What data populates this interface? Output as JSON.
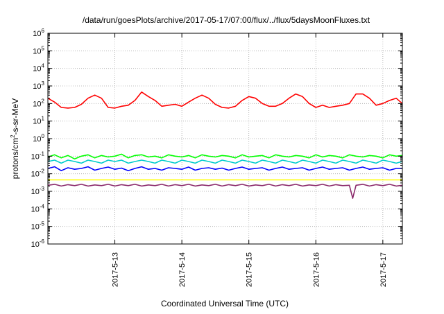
{
  "chart_data": {
    "type": "line",
    "title": "/data/run/goesPlots/archive/2017-05-17/07:00/flux/../flux/5daysMoonFluxes.txt",
    "xlabel": "Coordinated Universal Time (UTC)",
    "ylabel_prefix": "protons/cm",
    "ylabel_sup": "2",
    "ylabel_suffix": "-s-sr-MeV",
    "y_scale": "log",
    "ylim": [
      1e-06,
      1000000.0
    ],
    "y_tick_exponents": [
      "-6",
      "-5",
      "-4",
      "-3",
      "-2",
      "-1",
      "0",
      "1",
      "2",
      "3",
      "4",
      "5",
      "6"
    ],
    "xlim": [
      "2017-05-12 00:00",
      "2017-05-17 07:00"
    ],
    "x_ticks": [
      "2017-5-13",
      "2017-5-14",
      "2017-5-15",
      "2017-5-16",
      "2017-5-17"
    ],
    "grid": true,
    "series": [
      {
        "color": "#ff0000",
        "x_days": [
          0.0,
          0.1,
          0.2,
          0.3,
          0.4,
          0.5,
          0.6,
          0.7,
          0.8,
          0.9,
          1.0,
          1.1,
          1.2,
          1.3,
          1.4,
          1.5,
          1.6,
          1.7,
          1.8,
          1.9,
          2.0,
          2.1,
          2.2,
          2.3,
          2.4,
          2.5,
          2.6,
          2.7,
          2.8,
          2.9,
          3.0,
          3.1,
          3.2,
          3.3,
          3.4,
          3.5,
          3.6,
          3.7,
          3.8,
          3.9,
          4.0,
          4.1,
          4.2,
          4.3,
          4.4,
          4.5,
          4.6,
          4.7,
          4.8,
          4.9,
          5.0,
          5.1,
          5.2,
          5.29
        ],
        "values": [
          200,
          120,
          60,
          55,
          60,
          90,
          200,
          300,
          200,
          60,
          55,
          70,
          80,
          150,
          450,
          250,
          150,
          70,
          80,
          90,
          70,
          120,
          200,
          300,
          200,
          90,
          60,
          55,
          70,
          150,
          250,
          200,
          100,
          70,
          70,
          100,
          200,
          350,
          250,
          100,
          60,
          80,
          60,
          70,
          80,
          100,
          350,
          350,
          200,
          80,
          100,
          150,
          200,
          100
        ]
      },
      {
        "color": "#00ff00",
        "x_days": [
          0.0,
          0.1,
          0.2,
          0.3,
          0.4,
          0.5,
          0.6,
          0.7,
          0.8,
          0.9,
          1.0,
          1.1,
          1.2,
          1.3,
          1.4,
          1.5,
          1.6,
          1.7,
          1.8,
          1.9,
          2.0,
          2.1,
          2.2,
          2.3,
          2.4,
          2.5,
          2.6,
          2.7,
          2.8,
          2.9,
          3.0,
          3.1,
          3.2,
          3.3,
          3.4,
          3.5,
          3.6,
          3.7,
          3.8,
          3.9,
          4.0,
          4.1,
          4.2,
          4.3,
          4.4,
          4.5,
          4.6,
          4.7,
          4.8,
          4.9,
          5.0,
          5.1,
          5.2,
          5.29
        ],
        "values": [
          0.09,
          0.12,
          0.08,
          0.11,
          0.07,
          0.1,
          0.12,
          0.08,
          0.11,
          0.09,
          0.1,
          0.13,
          0.08,
          0.11,
          0.12,
          0.09,
          0.1,
          0.08,
          0.12,
          0.1,
          0.09,
          0.11,
          0.08,
          0.12,
          0.1,
          0.09,
          0.11,
          0.1,
          0.08,
          0.12,
          0.09,
          0.1,
          0.11,
          0.08,
          0.12,
          0.1,
          0.09,
          0.11,
          0.1,
          0.08,
          0.12,
          0.09,
          0.11,
          0.1,
          0.08,
          0.12,
          0.1,
          0.09,
          0.11,
          0.1,
          0.08,
          0.12,
          0.1,
          0.11
        ]
      },
      {
        "color": "#00cccc",
        "x_days": [
          0.0,
          0.1,
          0.2,
          0.3,
          0.4,
          0.5,
          0.6,
          0.7,
          0.8,
          0.9,
          1.0,
          1.1,
          1.2,
          1.3,
          1.4,
          1.5,
          1.6,
          1.7,
          1.8,
          1.9,
          2.0,
          2.1,
          2.2,
          2.3,
          2.4,
          2.5,
          2.6,
          2.7,
          2.8,
          2.9,
          3.0,
          3.1,
          3.2,
          3.3,
          3.4,
          3.5,
          3.6,
          3.7,
          3.8,
          3.9,
          4.0,
          4.1,
          4.2,
          4.3,
          4.4,
          4.5,
          4.6,
          4.7,
          4.8,
          4.9,
          5.0,
          5.1,
          5.2,
          5.29
        ],
        "values": [
          0.05,
          0.06,
          0.04,
          0.06,
          0.05,
          0.04,
          0.06,
          0.05,
          0.04,
          0.06,
          0.05,
          0.06,
          0.04,
          0.05,
          0.06,
          0.05,
          0.04,
          0.06,
          0.05,
          0.04,
          0.06,
          0.05,
          0.04,
          0.06,
          0.05,
          0.04,
          0.06,
          0.05,
          0.04,
          0.06,
          0.05,
          0.04,
          0.06,
          0.05,
          0.04,
          0.06,
          0.05,
          0.04,
          0.06,
          0.05,
          0.04,
          0.06,
          0.05,
          0.04,
          0.06,
          0.05,
          0.04,
          0.06,
          0.05,
          0.04,
          0.06,
          0.05,
          0.04,
          0.05
        ]
      },
      {
        "color": "#0000ff",
        "x_days": [
          0.0,
          0.1,
          0.2,
          0.3,
          0.4,
          0.5,
          0.6,
          0.7,
          0.8,
          0.9,
          1.0,
          1.1,
          1.2,
          1.3,
          1.4,
          1.5,
          1.6,
          1.7,
          1.8,
          1.9,
          2.0,
          2.1,
          2.2,
          2.3,
          2.4,
          2.5,
          2.6,
          2.7,
          2.8,
          2.9,
          3.0,
          3.1,
          3.2,
          3.3,
          3.4,
          3.5,
          3.6,
          3.7,
          3.8,
          3.9,
          4.0,
          4.1,
          4.2,
          4.3,
          4.4,
          4.5,
          4.6,
          4.7,
          4.8,
          4.9,
          5.0,
          5.1,
          5.2,
          5.29
        ],
        "values": [
          0.02,
          0.025,
          0.015,
          0.022,
          0.018,
          0.02,
          0.025,
          0.016,
          0.02,
          0.024,
          0.018,
          0.021,
          0.015,
          0.02,
          0.025,
          0.018,
          0.02,
          0.016,
          0.022,
          0.02,
          0.018,
          0.024,
          0.016,
          0.02,
          0.022,
          0.018,
          0.021,
          0.016,
          0.02,
          0.024,
          0.018,
          0.02,
          0.022,
          0.016,
          0.02,
          0.024,
          0.018,
          0.02,
          0.022,
          0.016,
          0.02,
          0.024,
          0.018,
          0.02,
          0.022,
          0.016,
          0.02,
          0.024,
          0.018,
          0.02,
          0.022,
          0.016,
          0.02,
          0.02
        ]
      },
      {
        "color": "#ffff00",
        "x_days": [
          0.0,
          0.5,
          1.0,
          1.5,
          2.0,
          2.5,
          3.0,
          3.5,
          4.0,
          4.5,
          5.0,
          5.29
        ],
        "values": [
          0.0045,
          0.0045,
          0.0045,
          0.0045,
          0.0045,
          0.0045,
          0.0045,
          0.0045,
          0.0045,
          0.0045,
          0.0045,
          0.0045
        ]
      },
      {
        "color": "#8b2a6b",
        "x_days": [
          0.0,
          0.1,
          0.2,
          0.3,
          0.4,
          0.5,
          0.6,
          0.7,
          0.8,
          0.9,
          1.0,
          1.1,
          1.2,
          1.3,
          1.4,
          1.5,
          1.6,
          1.7,
          1.8,
          1.9,
          2.0,
          2.1,
          2.2,
          2.3,
          2.4,
          2.5,
          2.6,
          2.7,
          2.8,
          2.9,
          3.0,
          3.1,
          3.2,
          3.3,
          3.4,
          3.5,
          3.6,
          3.7,
          3.8,
          3.9,
          4.0,
          4.1,
          4.2,
          4.3,
          4.4,
          4.5,
          4.55,
          4.6,
          4.7,
          4.8,
          4.9,
          5.0,
          5.1,
          5.2,
          5.29
        ],
        "values": [
          0.0022,
          0.0025,
          0.002,
          0.0024,
          0.0021,
          0.0025,
          0.002,
          0.0023,
          0.0021,
          0.0025,
          0.002,
          0.0024,
          0.0021,
          0.0025,
          0.002,
          0.0023,
          0.0021,
          0.0025,
          0.002,
          0.0024,
          0.0021,
          0.0025,
          0.002,
          0.0023,
          0.0021,
          0.0025,
          0.002,
          0.0024,
          0.0021,
          0.0025,
          0.002,
          0.0023,
          0.0021,
          0.0025,
          0.002,
          0.0024,
          0.0021,
          0.0025,
          0.002,
          0.0023,
          0.0021,
          0.0025,
          0.002,
          0.0024,
          0.0021,
          0.0022,
          0.0004,
          0.0022,
          0.0025,
          0.002,
          0.0024,
          0.0021,
          0.0025,
          0.002,
          0.0022
        ]
      }
    ]
  }
}
